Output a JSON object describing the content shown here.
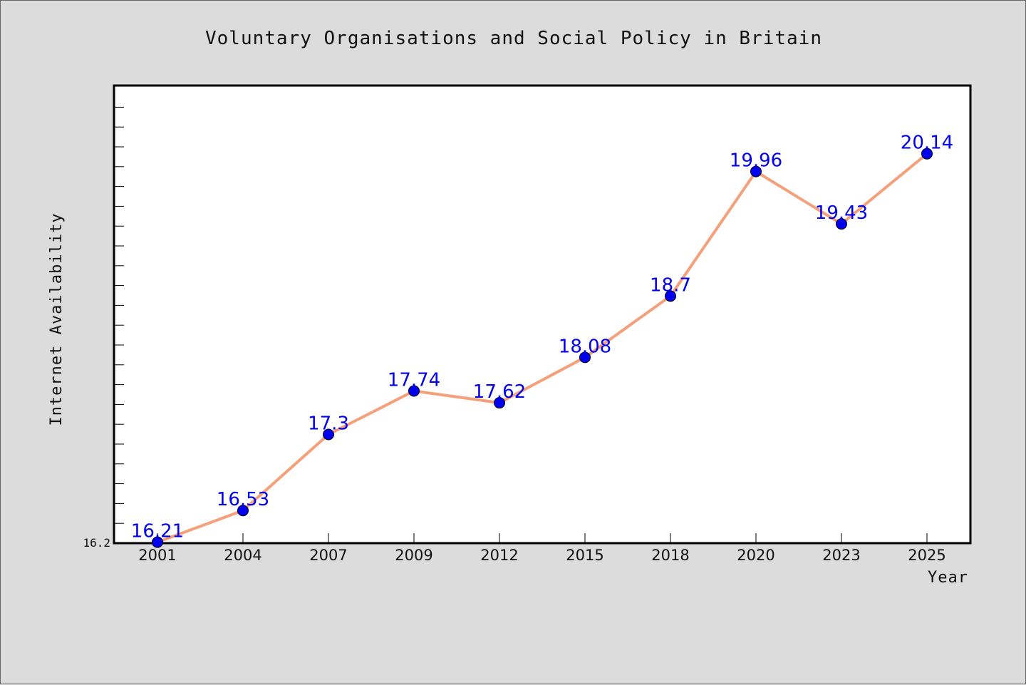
{
  "chart_data": {
    "type": "line",
    "title": "Voluntary Organisations and Social Policy in Britain",
    "xlabel": "Year",
    "ylabel": "Internet Availability",
    "categories": [
      "2001",
      "2004",
      "2007",
      "2009",
      "2012",
      "2015",
      "2018",
      "2020",
      "2023",
      "2025"
    ],
    "series": [
      {
        "values": [
          16.21,
          16.53,
          17.3,
          17.74,
          17.62,
          18.08,
          18.7,
          19.96,
          19.43,
          20.14
        ]
      }
    ],
    "data_labels": [
      "16.21",
      "16.53",
      "17.3",
      "17.74",
      "17.62",
      "18.08",
      "18.7",
      "19.96",
      "19.43",
      "20.14"
    ],
    "yticks": [
      "16.2"
    ],
    "ylim": [
      16.2,
      20.83
    ],
    "grid": false,
    "line_color": "#f4a07a",
    "marker_color": "#0000ee",
    "label_color": "#0000ee",
    "background_color": "#dcdcdc",
    "plot_background_color": "#ffffff"
  }
}
